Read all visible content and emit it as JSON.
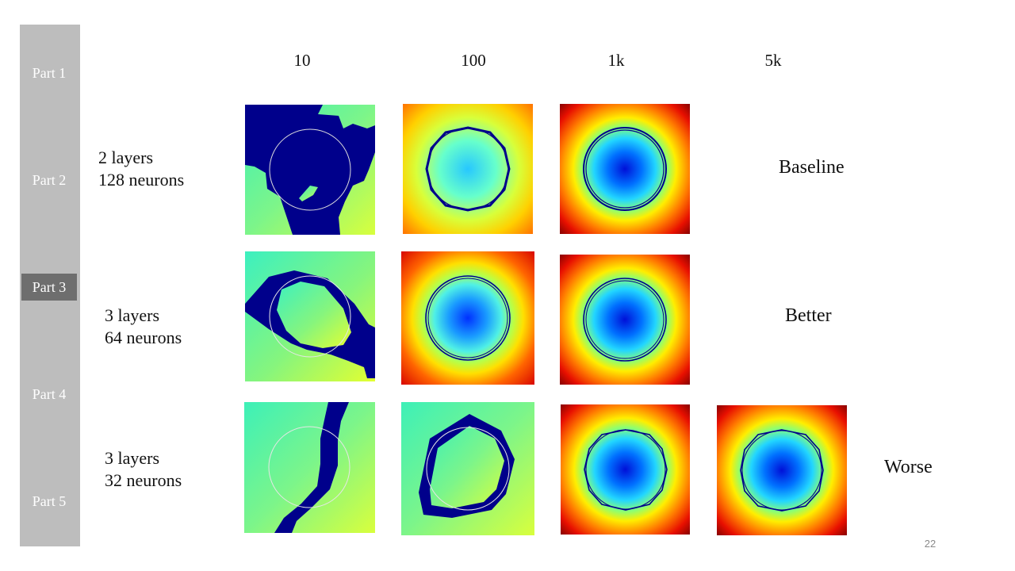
{
  "sidebar": {
    "items": [
      {
        "label": "Part 1",
        "active": false
      },
      {
        "label": "Part 2",
        "active": false
      },
      {
        "label": "Part 3",
        "active": true
      },
      {
        "label": "Part 4",
        "active": false
      },
      {
        "label": "Part 5",
        "active": false
      }
    ]
  },
  "columns": [
    "10",
    "100",
    "1k",
    "5k"
  ],
  "rows": [
    {
      "line1": "2 layers",
      "line2": "128 neurons",
      "verdict": "Baseline"
    },
    {
      "line1": "3 layers",
      "line2": "64 neurons",
      "verdict": "Better"
    },
    {
      "line1": "3 layers",
      "line2": "32 neurons",
      "verdict": "Worse"
    }
  ],
  "colors": {
    "sidebar": "#bdbdbd",
    "sidebar_active": "#6e6e6e",
    "dark_region": "#00008b"
  },
  "page_number": "22"
}
